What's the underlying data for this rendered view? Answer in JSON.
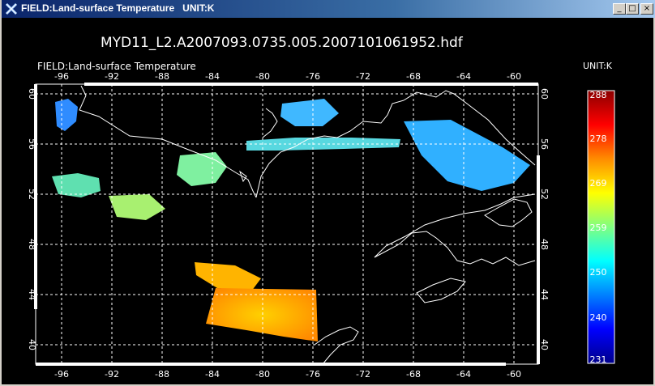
{
  "window": {
    "title": "FIELD:Land-surface Temperature   UNIT:K",
    "minimize_glyph": "_",
    "maximize_glyph": "□",
    "close_glyph": "×"
  },
  "plot": {
    "filename": "MYD11_L2.A2007093.0735.005.2007101061952.hdf",
    "field_label": "FIELD:Land-surface Temperature",
    "unit_label": "UNIT:K",
    "lon_ticks": [
      "-96",
      "-92",
      "-88",
      "-84",
      "-80",
      "-76",
      "-72",
      "-68",
      "-64",
      "-60"
    ],
    "lat_ticks": [
      "60",
      "56",
      "52",
      "48",
      "44",
      "40"
    ],
    "colorbar_ticks": [
      "288",
      "278",
      "269",
      "259",
      "250",
      "240",
      "231"
    ],
    "colorbar_colors": [
      "#8b0000",
      "#ff0000",
      "#ff8c00",
      "#ffff00",
      "#80ff80",
      "#00ffff",
      "#0080ff",
      "#0000ff",
      "#00008b"
    ]
  }
}
